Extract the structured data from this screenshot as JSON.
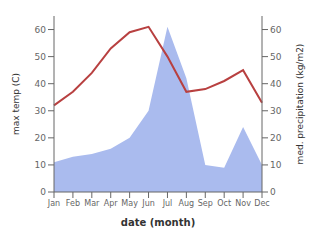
{
  "chart_data": {
    "type": "line",
    "xlabel": "date (month)",
    "ylabel": "max temp (C)",
    "y2label": "med. precipitation (kg/m2)",
    "categories": [
      "Jan",
      "Feb",
      "Mar",
      "Apr",
      "May",
      "Jun",
      "Jul",
      "Aug",
      "Sep",
      "Oct",
      "Nov",
      "Dec"
    ],
    "series": [
      {
        "type": "area",
        "color": "#aabbee",
        "values": [
          11,
          13,
          14,
          16,
          20,
          30,
          61,
          42,
          10,
          9,
          24,
          10
        ]
      },
      {
        "type": "line",
        "color": "#b84040",
        "axis": "y2",
        "values": [
          32,
          37,
          44,
          53,
          59,
          61,
          50,
          37,
          38,
          41,
          45,
          33
        ]
      }
    ],
    "ylim": [
      0,
      65
    ],
    "yticks": [
      0,
      10,
      20,
      30,
      40,
      50,
      60
    ],
    "y2lim": [
      0,
      65
    ],
    "y2ticks": [
      0,
      10,
      20,
      30,
      40,
      50,
      60
    ]
  }
}
